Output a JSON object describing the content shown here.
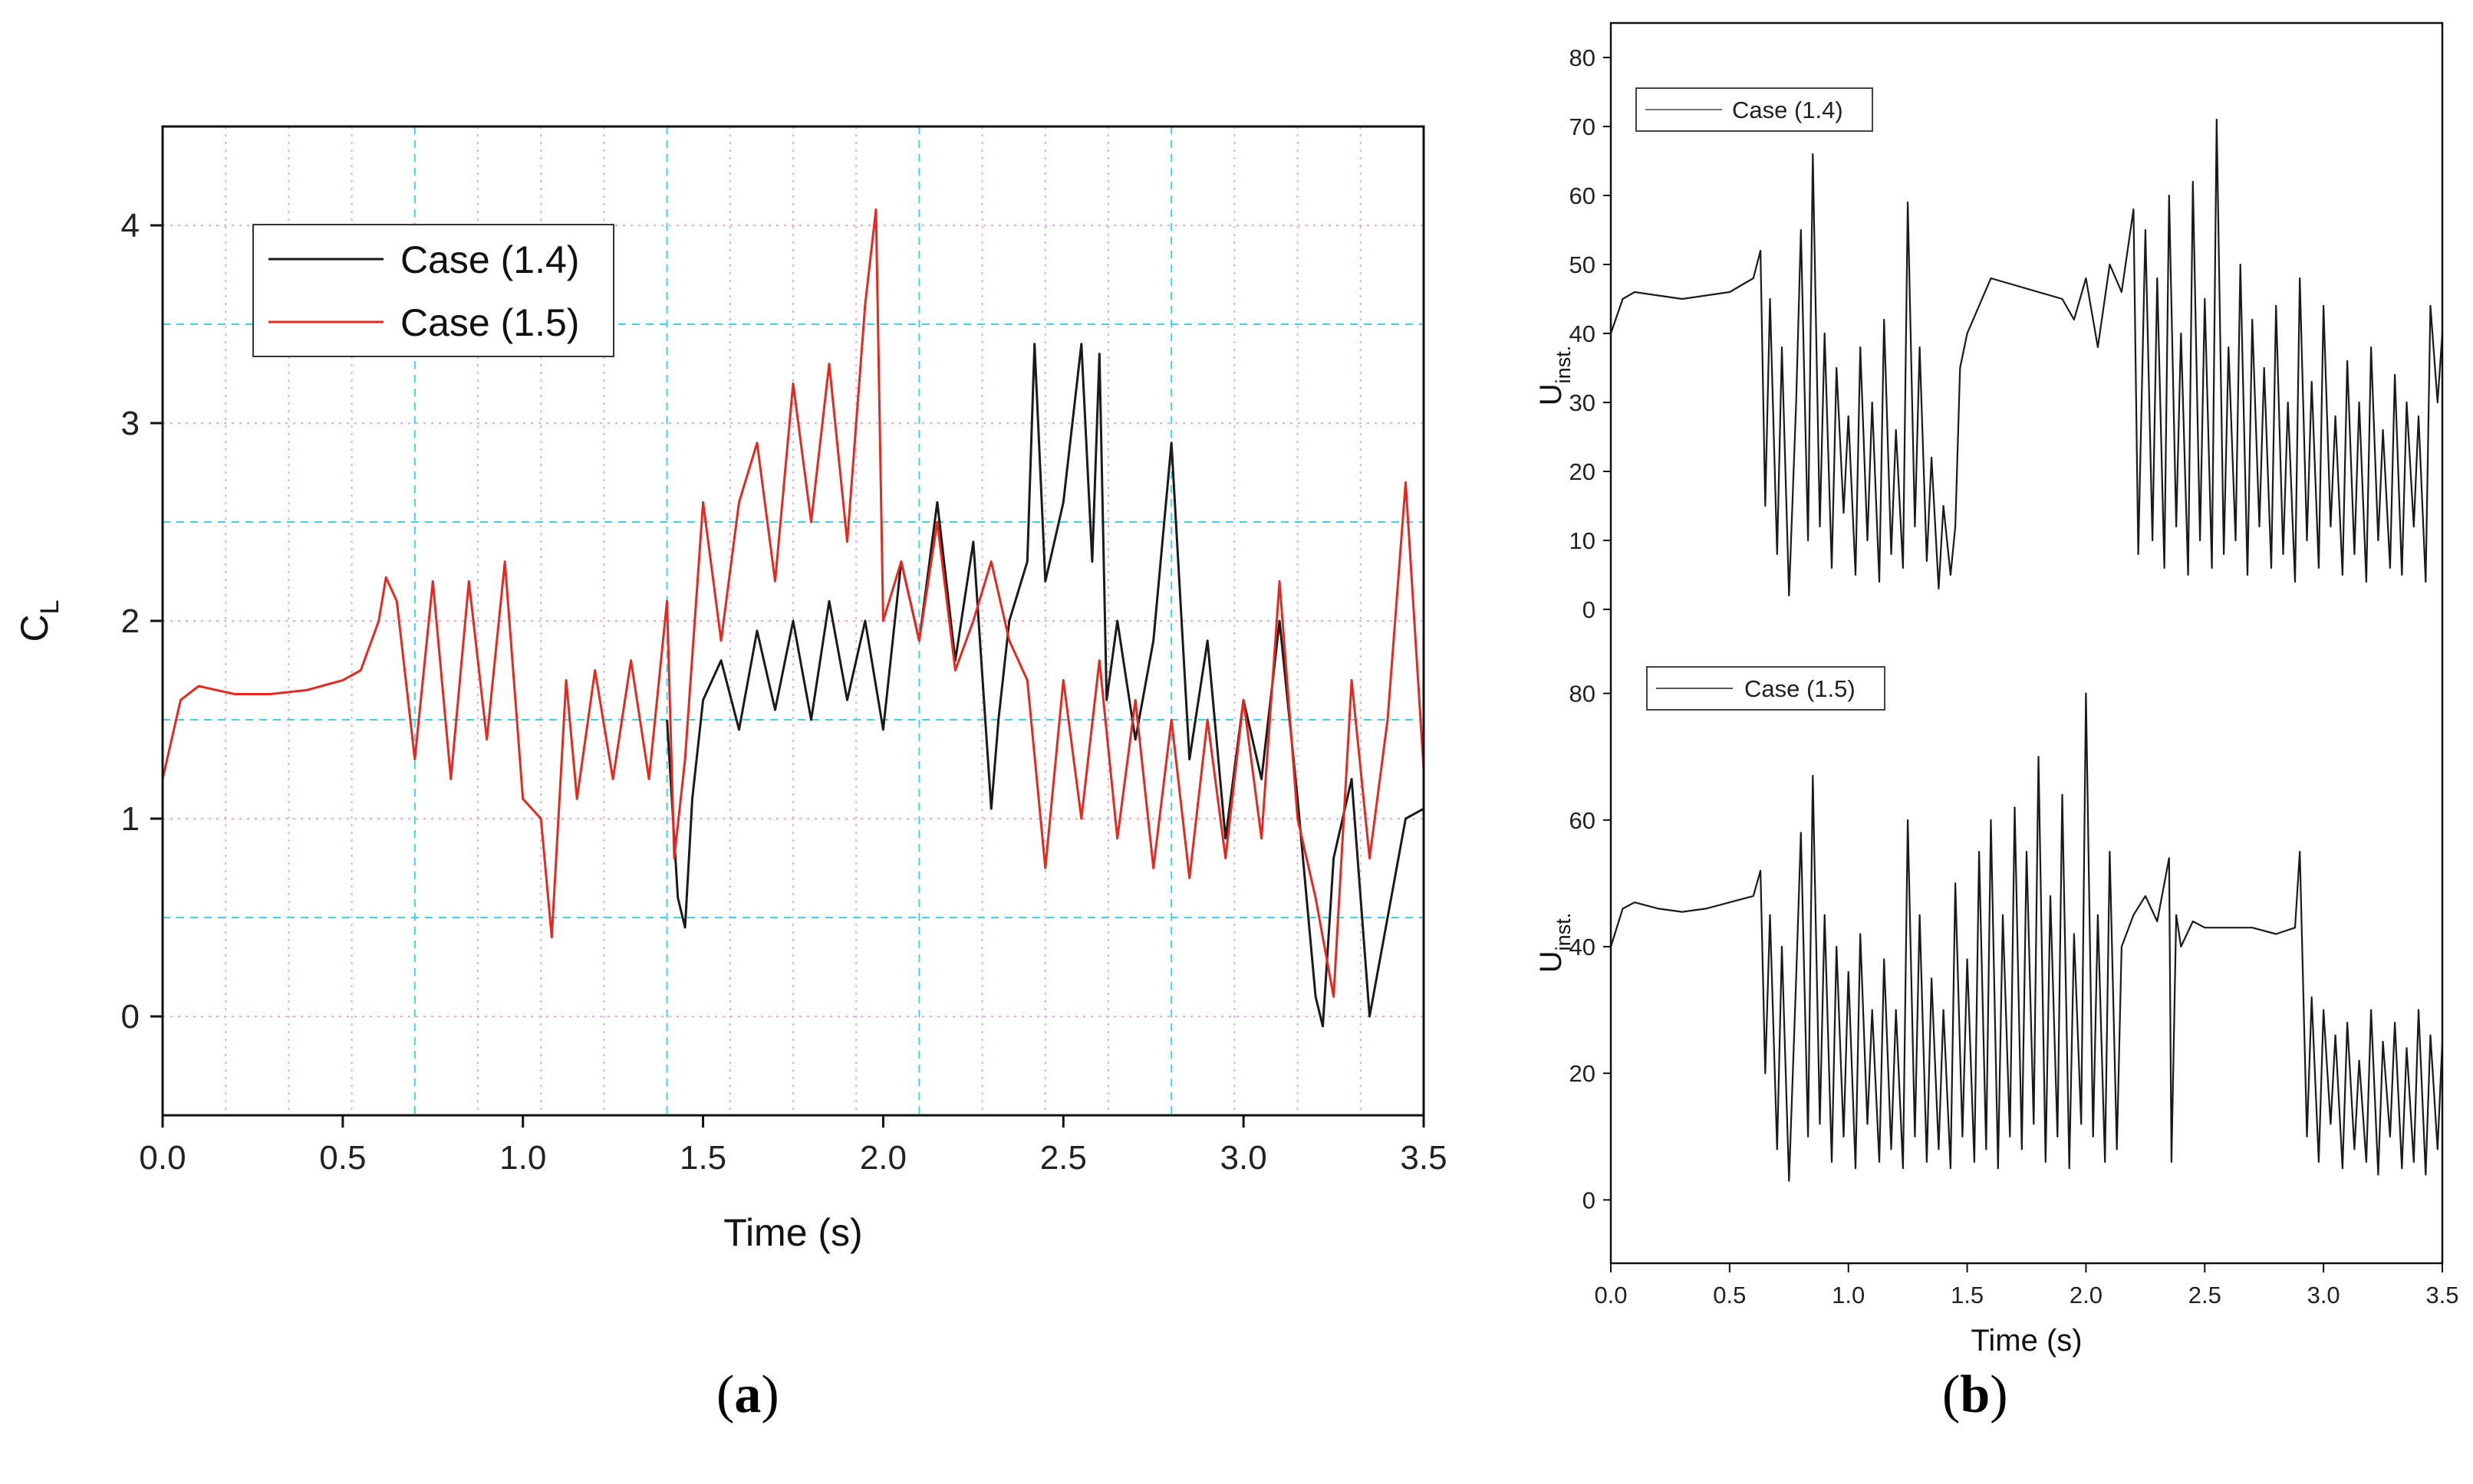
{
  "chart_data": [
    {
      "id": "a",
      "panel_label": "a",
      "type": "line",
      "title": "",
      "xlabel": "Time (s)",
      "ylabel": "C",
      "ylabel_sub": "L",
      "xlim": [
        0.0,
        3.5
      ],
      "ylim": [
        -0.5,
        4.5
      ],
      "xticks": [
        "0.0",
        "0.5",
        "1.0",
        "1.5",
        "2.0",
        "2.5",
        "3.0",
        "3.5"
      ],
      "yticks": [
        "0",
        "1",
        "2",
        "3",
        "4"
      ],
      "grid": true,
      "legend_position": "top-left",
      "series": [
        {
          "name": "Case (1.4)",
          "color": "#1a1a1a",
          "x": [
            1.4,
            1.43,
            1.45,
            1.47,
            1.5,
            1.55,
            1.6,
            1.65,
            1.7,
            1.75,
            1.8,
            1.85,
            1.9,
            1.95,
            2.0,
            2.05,
            2.1,
            2.15,
            2.2,
            2.25,
            2.3,
            2.32,
            2.35,
            2.4,
            2.42,
            2.45,
            2.5,
            2.55,
            2.58,
            2.6,
            2.62,
            2.65,
            2.7,
            2.75,
            2.8,
            2.85,
            2.9,
            2.95,
            3.0,
            3.05,
            3.1,
            3.15,
            3.2,
            3.22,
            3.25,
            3.3,
            3.35,
            3.4,
            3.45,
            3.5
          ],
          "y": [
            1.5,
            0.6,
            0.45,
            1.1,
            1.6,
            1.8,
            1.45,
            1.95,
            1.55,
            2.0,
            1.5,
            2.1,
            1.6,
            2.0,
            1.45,
            2.3,
            1.9,
            2.6,
            1.8,
            2.4,
            1.05,
            1.5,
            2.0,
            2.3,
            3.4,
            2.2,
            2.6,
            3.4,
            2.3,
            3.35,
            1.6,
            2.0,
            1.4,
            1.9,
            2.9,
            1.3,
            1.9,
            0.9,
            1.6,
            1.2,
            2.0,
            1.1,
            0.1,
            -0.05,
            0.8,
            1.2,
            0.0,
            0.5,
            1.0,
            1.05
          ]
        },
        {
          "name": "Case (1.5)",
          "color": "#e8281e",
          "x": [
            0.0,
            0.05,
            0.1,
            0.15,
            0.2,
            0.3,
            0.4,
            0.5,
            0.55,
            0.6,
            0.62,
            0.65,
            0.7,
            0.75,
            0.8,
            0.85,
            0.9,
            0.95,
            1.0,
            1.05,
            1.08,
            1.12,
            1.15,
            1.2,
            1.25,
            1.3,
            1.35,
            1.4,
            1.42,
            1.45,
            1.5,
            1.55,
            1.6,
            1.65,
            1.7,
            1.75,
            1.8,
            1.85,
            1.9,
            1.95,
            1.98,
            2.0,
            2.05,
            2.1,
            2.15,
            2.2,
            2.25,
            2.3,
            2.35,
            2.4,
            2.45,
            2.5,
            2.55,
            2.6,
            2.65,
            2.7,
            2.75,
            2.8,
            2.85,
            2.9,
            2.95,
            3.0,
            3.05,
            3.1,
            3.15,
            3.2,
            3.25,
            3.3,
            3.35,
            3.4,
            3.45,
            3.5
          ],
          "y": [
            1.2,
            1.6,
            1.67,
            1.65,
            1.63,
            1.63,
            1.65,
            1.7,
            1.75,
            2.0,
            2.22,
            2.1,
            1.3,
            2.2,
            1.2,
            2.2,
            1.4,
            2.3,
            1.1,
            1.0,
            0.4,
            1.7,
            1.1,
            1.75,
            1.2,
            1.8,
            1.2,
            2.1,
            0.8,
            1.3,
            2.6,
            1.9,
            2.6,
            2.9,
            2.2,
            3.2,
            2.5,
            3.3,
            2.4,
            3.6,
            4.08,
            2.0,
            2.3,
            1.9,
            2.5,
            1.75,
            2.0,
            2.3,
            1.9,
            1.7,
            0.75,
            1.7,
            1.0,
            1.8,
            0.9,
            1.6,
            0.75,
            1.5,
            0.7,
            1.5,
            0.8,
            1.6,
            0.9,
            2.2,
            1.0,
            0.6,
            0.1,
            1.7,
            0.8,
            1.5,
            2.7,
            1.25
          ]
        }
      ]
    },
    {
      "id": "b",
      "panel_label": "b",
      "type": "line",
      "title": "",
      "xlabel": "Time (s)",
      "xlim": [
        0.0,
        3.5
      ],
      "xticks": [
        "0.0",
        "0.5",
        "1.0",
        "1.5",
        "2.0",
        "2.5",
        "3.0",
        "3.5"
      ],
      "grid": false,
      "subplots": [
        {
          "ylabel": "U",
          "ylabel_sub": "inst.",
          "ylim": [
            -3,
            85
          ],
          "yticks": [
            "0",
            "10",
            "20",
            "30",
            "40",
            "50",
            "60",
            "70",
            "80"
          ],
          "legend_position": "top-left",
          "series": [
            {
              "name": "Case (1.4)",
              "color": "#1a1a1a",
              "x": [
                0.0,
                0.05,
                0.1,
                0.2,
                0.3,
                0.4,
                0.5,
                0.6,
                0.63,
                0.65,
                0.67,
                0.7,
                0.72,
                0.75,
                0.78,
                0.8,
                0.83,
                0.85,
                0.88,
                0.9,
                0.93,
                0.95,
                0.98,
                1.0,
                1.03,
                1.05,
                1.08,
                1.1,
                1.13,
                1.15,
                1.18,
                1.2,
                1.23,
                1.25,
                1.28,
                1.3,
                1.33,
                1.35,
                1.38,
                1.4,
                1.43,
                1.45,
                1.47,
                1.5,
                1.6,
                1.7,
                1.8,
                1.9,
                1.95,
                2.0,
                2.05,
                2.1,
                2.15,
                2.2,
                2.22,
                2.25,
                2.28,
                2.3,
                2.33,
                2.35,
                2.38,
                2.4,
                2.43,
                2.45,
                2.48,
                2.5,
                2.53,
                2.55,
                2.58,
                2.6,
                2.63,
                2.65,
                2.68,
                2.7,
                2.73,
                2.75,
                2.78,
                2.8,
                2.83,
                2.85,
                2.88,
                2.9,
                2.93,
                2.95,
                2.98,
                3.0,
                3.03,
                3.05,
                3.08,
                3.1,
                3.13,
                3.15,
                3.18,
                3.2,
                3.23,
                3.25,
                3.28,
                3.3,
                3.33,
                3.35,
                3.38,
                3.4,
                3.43,
                3.45,
                3.48,
                3.5
              ],
              "y": [
                40,
                45,
                46,
                45.5,
                45,
                45.5,
                46,
                48,
                52,
                15,
                45,
                8,
                38,
                2,
                30,
                55,
                10,
                66,
                12,
                40,
                6,
                35,
                14,
                28,
                5,
                38,
                10,
                30,
                4,
                42,
                8,
                26,
                6,
                59,
                12,
                38,
                7,
                22,
                3,
                15,
                5,
                12,
                35,
                40,
                48,
                47,
                46,
                45,
                42,
                48,
                38,
                50,
                46,
                58,
                8,
                55,
                10,
                48,
                6,
                60,
                12,
                40,
                5,
                62,
                10,
                45,
                6,
                71,
                8,
                38,
                10,
                50,
                5,
                42,
                12,
                35,
                6,
                44,
                8,
                30,
                4,
                48,
                10,
                33,
                6,
                44,
                12,
                28,
                5,
                36,
                8,
                30,
                4,
                38,
                10,
                26,
                6,
                34,
                5,
                30,
                12,
                28,
                4,
                44,
                30,
                40
              ]
            }
          ]
        },
        {
          "ylabel": "U",
          "ylabel_sub": "inst.",
          "ylim": [
            -10,
            90
          ],
          "yticks": [
            "0",
            "20",
            "40",
            "60",
            "80"
          ],
          "legend_position": "top-left",
          "series": [
            {
              "name": "Case (1.5)",
              "color": "#1a1a1a",
              "x": [
                0.0,
                0.05,
                0.1,
                0.2,
                0.3,
                0.4,
                0.5,
                0.6,
                0.63,
                0.65,
                0.67,
                0.7,
                0.72,
                0.75,
                0.78,
                0.8,
                0.83,
                0.85,
                0.88,
                0.9,
                0.93,
                0.95,
                0.98,
                1.0,
                1.03,
                1.05,
                1.08,
                1.1,
                1.13,
                1.15,
                1.18,
                1.2,
                1.23,
                1.25,
                1.28,
                1.3,
                1.33,
                1.35,
                1.38,
                1.4,
                1.43,
                1.45,
                1.48,
                1.5,
                1.53,
                1.55,
                1.58,
                1.6,
                1.63,
                1.65,
                1.68,
                1.7,
                1.73,
                1.75,
                1.78,
                1.8,
                1.83,
                1.85,
                1.88,
                1.9,
                1.93,
                1.95,
                1.98,
                2.0,
                2.03,
                2.05,
                2.08,
                2.1,
                2.13,
                2.15,
                2.2,
                2.25,
                2.3,
                2.35,
                2.36,
                2.38,
                2.4,
                2.45,
                2.5,
                2.6,
                2.7,
                2.8,
                2.88,
                2.9,
                2.93,
                2.95,
                2.98,
                3.0,
                3.03,
                3.05,
                3.08,
                3.1,
                3.13,
                3.15,
                3.18,
                3.2,
                3.23,
                3.25,
                3.28,
                3.3,
                3.33,
                3.35,
                3.38,
                3.4,
                3.43,
                3.45,
                3.48,
                3.5
              ],
              "y": [
                40,
                46,
                47,
                46,
                45.5,
                46,
                47,
                48,
                52,
                20,
                45,
                8,
                40,
                3,
                35,
                58,
                10,
                67,
                12,
                45,
                6,
                40,
                10,
                36,
                5,
                42,
                12,
                30,
                6,
                38,
                8,
                30,
                5,
                60,
                10,
                45,
                6,
                35,
                8,
                30,
                5,
                50,
                10,
                38,
                6,
                55,
                8,
                60,
                5,
                45,
                10,
                62,
                8,
                55,
                12,
                70,
                6,
                48,
                10,
                64,
                5,
                42,
                12,
                80,
                10,
                45,
                6,
                55,
                8,
                40,
                45,
                48,
                44,
                54,
                6,
                45,
                40,
                44,
                43,
                43,
                43,
                42,
                43,
                55,
                10,
                32,
                6,
                30,
                12,
                26,
                5,
                28,
                8,
                22,
                6,
                30,
                4,
                25,
                10,
                28,
                5,
                24,
                6,
                30,
                4,
                26,
                8,
                25
              ]
            }
          ]
        }
      ]
    }
  ]
}
